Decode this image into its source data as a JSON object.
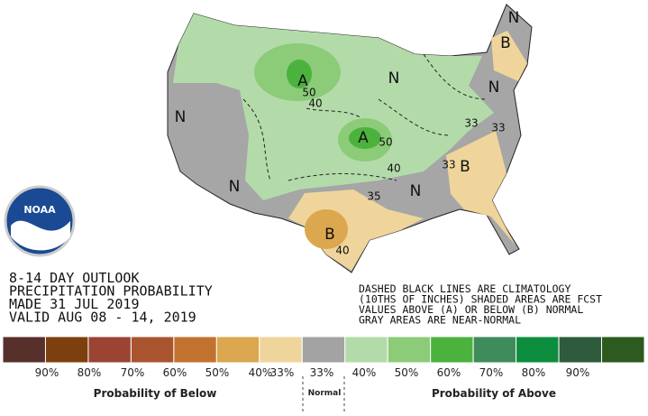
{
  "outlook": {
    "lines": [
      "8-14 DAY OUTLOOK",
      "PRECIPITATION PROBABILITY",
      "MADE  31 JUL 2019",
      "VALID  AUG 08 - 14, 2019"
    ]
  },
  "notes": [
    "DASHED BLACK LINES ARE CLIMATOLOGY",
    "(10THS OF INCHES) SHADED AREAS ARE FCST",
    "VALUES ABOVE (A) OR BELOW (B) NORMAL",
    "GRAY AREAS ARE NEAR-NORMAL"
  ],
  "map_labels": [
    {
      "text": "A"
    },
    {
      "text": "50"
    },
    {
      "text": "40"
    },
    {
      "text": "A"
    },
    {
      "text": "50"
    },
    {
      "text": "40"
    },
    {
      "text": "N"
    },
    {
      "text": "N"
    },
    {
      "text": "N"
    },
    {
      "text": "N"
    },
    {
      "text": "N"
    },
    {
      "text": "N"
    },
    {
      "text": "B"
    },
    {
      "text": "B"
    },
    {
      "text": "B"
    },
    {
      "text": "33"
    },
    {
      "text": "33"
    },
    {
      "text": "33"
    },
    {
      "text": "35"
    },
    {
      "text": "40"
    }
  ],
  "logo": {
    "text": "NOAA"
  },
  "legend": {
    "colors": [
      "#57302c",
      "#7e3f0e",
      "#9b4434",
      "#a9532f",
      "#c2722f",
      "#dba74f",
      "#efd59b",
      "#a3a3a3",
      "#b3dbaa",
      "#8ccb78",
      "#4cb23e",
      "#3e8b5b",
      "#0d8e3f",
      "#2d5b3b",
      "#2c5a1f"
    ],
    "labels": [
      "90%",
      "80%",
      "70%",
      "60%",
      "50%",
      "40%",
      "33%",
      "33%",
      "40%",
      "50%",
      "60%",
      "70%",
      "80%",
      "90%"
    ],
    "below": "Probability of Below",
    "normal": "Normal",
    "above": "Probability of Above"
  }
}
